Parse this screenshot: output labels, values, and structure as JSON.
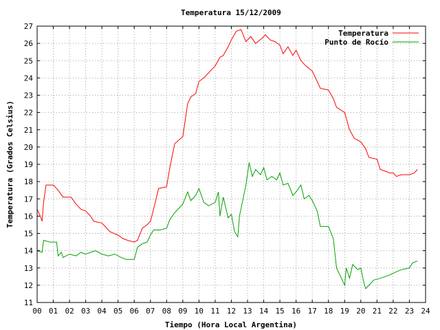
{
  "chart_data": {
    "type": "line",
    "title": "Temperatura 15/12/2009",
    "xlabel": "Tiempo (Hora Local Argentina)",
    "ylabel": "Temperatura (Grados Celsius)",
    "xlim": [
      0,
      24
    ],
    "ylim": [
      11,
      27
    ],
    "x_ticks": [
      0,
      1,
      2,
      3,
      4,
      5,
      6,
      7,
      8,
      9,
      10,
      11,
      12,
      13,
      14,
      15,
      16,
      17,
      18,
      19,
      20,
      21,
      22,
      23,
      24
    ],
    "x_tick_labels": [
      "00",
      "01",
      "02",
      "03",
      "04",
      "05",
      "06",
      "07",
      "08",
      "09",
      "10",
      "11",
      "12",
      "13",
      "14",
      "15",
      "16",
      "17",
      "18",
      "19",
      "20",
      "21",
      "22",
      "23",
      "24"
    ],
    "y_ticks": [
      11,
      12,
      13,
      14,
      15,
      16,
      17,
      18,
      19,
      20,
      21,
      22,
      23,
      24,
      25,
      26,
      27
    ],
    "grid": true,
    "legend_position": "top-right",
    "series": [
      {
        "name": "Temperatura",
        "color": "#ff0000",
        "points": [
          [
            0.0,
            16.4
          ],
          [
            0.2,
            16.0
          ],
          [
            0.3,
            15.7
          ],
          [
            0.4,
            16.8
          ],
          [
            0.55,
            17.8
          ],
          [
            1.0,
            17.8
          ],
          [
            1.3,
            17.5
          ],
          [
            1.6,
            17.1
          ],
          [
            2.1,
            17.1
          ],
          [
            2.4,
            16.7
          ],
          [
            2.7,
            16.4
          ],
          [
            3.0,
            16.3
          ],
          [
            3.3,
            16.0
          ],
          [
            3.5,
            15.7
          ],
          [
            4.0,
            15.6
          ],
          [
            4.2,
            15.4
          ],
          [
            4.5,
            15.1
          ],
          [
            5.0,
            14.9
          ],
          [
            5.3,
            14.7
          ],
          [
            5.6,
            14.6
          ],
          [
            6.0,
            14.5
          ],
          [
            6.2,
            14.6
          ],
          [
            6.5,
            15.3
          ],
          [
            6.8,
            15.5
          ],
          [
            7.0,
            15.7
          ],
          [
            7.3,
            16.8
          ],
          [
            7.5,
            17.6
          ],
          [
            8.0,
            17.7
          ],
          [
            8.2,
            18.8
          ],
          [
            8.5,
            20.2
          ],
          [
            9.0,
            20.6
          ],
          [
            9.3,
            22.5
          ],
          [
            9.5,
            22.9
          ],
          [
            9.8,
            23.1
          ],
          [
            10.0,
            23.8
          ],
          [
            10.3,
            24.0
          ],
          [
            10.6,
            24.3
          ],
          [
            11.0,
            24.7
          ],
          [
            11.3,
            25.2
          ],
          [
            11.5,
            25.3
          ],
          [
            11.8,
            25.8
          ],
          [
            12.0,
            26.2
          ],
          [
            12.3,
            26.7
          ],
          [
            12.6,
            26.8
          ],
          [
            12.9,
            26.1
          ],
          [
            13.2,
            26.4
          ],
          [
            13.5,
            26.0
          ],
          [
            13.9,
            26.3
          ],
          [
            14.1,
            26.5
          ],
          [
            14.4,
            26.2
          ],
          [
            14.7,
            26.1
          ],
          [
            15.0,
            25.9
          ],
          [
            15.2,
            25.4
          ],
          [
            15.5,
            25.8
          ],
          [
            15.8,
            25.3
          ],
          [
            16.0,
            25.6
          ],
          [
            16.3,
            25.0
          ],
          [
            16.6,
            24.7
          ],
          [
            17.0,
            24.4
          ],
          [
            17.3,
            23.8
          ],
          [
            17.5,
            23.4
          ],
          [
            18.0,
            23.3
          ],
          [
            18.3,
            22.8
          ],
          [
            18.5,
            22.3
          ],
          [
            19.0,
            22.0
          ],
          [
            19.3,
            21.0
          ],
          [
            19.6,
            20.5
          ],
          [
            20.0,
            20.3
          ],
          [
            20.3,
            19.9
          ],
          [
            20.5,
            19.4
          ],
          [
            21.0,
            19.3
          ],
          [
            21.2,
            18.7
          ],
          [
            21.5,
            18.6
          ],
          [
            21.8,
            18.5
          ],
          [
            22.0,
            18.5
          ],
          [
            22.2,
            18.3
          ],
          [
            22.5,
            18.4
          ],
          [
            23.0,
            18.4
          ],
          [
            23.3,
            18.5
          ],
          [
            23.5,
            18.7
          ]
        ]
      },
      {
        "name": "Punto de Rocío",
        "color": "#00a000",
        "points": [
          [
            0.0,
            14.0
          ],
          [
            0.3,
            13.9
          ],
          [
            0.4,
            14.6
          ],
          [
            0.8,
            14.5
          ],
          [
            1.2,
            14.5
          ],
          [
            1.3,
            13.7
          ],
          [
            1.5,
            13.9
          ],
          [
            1.6,
            13.6
          ],
          [
            2.0,
            13.8
          ],
          [
            2.4,
            13.7
          ],
          [
            2.7,
            13.9
          ],
          [
            3.0,
            13.8
          ],
          [
            3.3,
            13.9
          ],
          [
            3.6,
            14.0
          ],
          [
            4.0,
            13.8
          ],
          [
            4.4,
            13.7
          ],
          [
            4.8,
            13.8
          ],
          [
            5.2,
            13.6
          ],
          [
            5.5,
            13.5
          ],
          [
            6.0,
            13.5
          ],
          [
            6.2,
            14.2
          ],
          [
            6.5,
            14.4
          ],
          [
            6.8,
            14.5
          ],
          [
            7.0,
            14.9
          ],
          [
            7.2,
            15.2
          ],
          [
            7.6,
            15.2
          ],
          [
            8.0,
            15.3
          ],
          [
            8.2,
            15.8
          ],
          [
            8.5,
            16.2
          ],
          [
            9.0,
            16.7
          ],
          [
            9.3,
            17.4
          ],
          [
            9.5,
            16.9
          ],
          [
            9.8,
            17.2
          ],
          [
            10.0,
            17.6
          ],
          [
            10.3,
            16.8
          ],
          [
            10.6,
            16.6
          ],
          [
            11.0,
            16.8
          ],
          [
            11.2,
            17.4
          ],
          [
            11.3,
            16.0
          ],
          [
            11.5,
            17.1
          ],
          [
            11.8,
            15.9
          ],
          [
            12.0,
            16.1
          ],
          [
            12.2,
            15.1
          ],
          [
            12.4,
            14.8
          ],
          [
            12.5,
            16.0
          ],
          [
            12.7,
            16.9
          ],
          [
            12.9,
            17.8
          ],
          [
            13.1,
            19.1
          ],
          [
            13.3,
            18.3
          ],
          [
            13.5,
            18.7
          ],
          [
            13.8,
            18.4
          ],
          [
            14.0,
            18.8
          ],
          [
            14.2,
            18.1
          ],
          [
            14.5,
            18.3
          ],
          [
            14.8,
            18.1
          ],
          [
            15.0,
            18.5
          ],
          [
            15.2,
            17.8
          ],
          [
            15.5,
            17.9
          ],
          [
            15.8,
            17.2
          ],
          [
            16.0,
            17.4
          ],
          [
            16.3,
            17.8
          ],
          [
            16.5,
            17.0
          ],
          [
            16.8,
            17.2
          ],
          [
            17.0,
            16.9
          ],
          [
            17.3,
            16.3
          ],
          [
            17.5,
            15.4
          ],
          [
            18.0,
            15.4
          ],
          [
            18.3,
            14.7
          ],
          [
            18.5,
            13.0
          ],
          [
            18.8,
            12.4
          ],
          [
            19.0,
            12.0
          ],
          [
            19.1,
            13.0
          ],
          [
            19.3,
            12.4
          ],
          [
            19.5,
            13.2
          ],
          [
            19.8,
            12.9
          ],
          [
            20.0,
            13.0
          ],
          [
            20.2,
            12.1
          ],
          [
            20.3,
            11.8
          ],
          [
            20.5,
            12.0
          ],
          [
            20.8,
            12.3
          ],
          [
            21.2,
            12.4
          ],
          [
            21.5,
            12.5
          ],
          [
            21.8,
            12.6
          ],
          [
            22.0,
            12.7
          ],
          [
            22.5,
            12.9
          ],
          [
            23.0,
            13.0
          ],
          [
            23.2,
            13.3
          ],
          [
            23.5,
            13.4
          ]
        ]
      }
    ]
  }
}
